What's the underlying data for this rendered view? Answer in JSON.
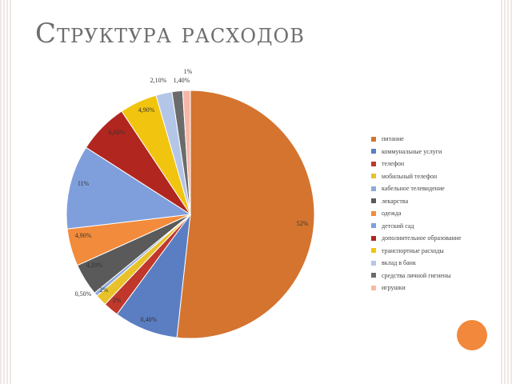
{
  "title": "Структура расходов",
  "chart_data": {
    "type": "pie",
    "title": "",
    "slices": [
      {
        "label": "питание",
        "value": 52,
        "value_label": "52%",
        "color": "#d4742f"
      },
      {
        "label": "коммунальные услуги",
        "value": 8.4,
        "value_label": "8,40%",
        "color": "#5b7ec2"
      },
      {
        "label": "телефон",
        "value": 2,
        "value_label": "2%",
        "color": "#c0372c"
      },
      {
        "label": "мобильный телефон",
        "value": 1.5,
        "value_label": "2%",
        "color": "#e8c22a"
      },
      {
        "label": "кабельное телевидение",
        "value": 0.5,
        "value_label": "0,50%",
        "color": "#8faad9"
      },
      {
        "label": "лекарства",
        "value": 4.2,
        "value_label": "4,20%",
        "color": "#5a5a5a"
      },
      {
        "label": "одежда",
        "value": 4.9,
        "value_label": "4,90%",
        "color": "#f28b3b"
      },
      {
        "label": "детский сад",
        "value": 11,
        "value_label": "11%",
        "color": "#7f9fdc"
      },
      {
        "label": "дополнительное образование",
        "value": 6.6,
        "value_label": "6,60%",
        "color": "#b1261f"
      },
      {
        "label": "транспортные расходы",
        "value": 4.9,
        "value_label": "4,90%",
        "color": "#f1c40f"
      },
      {
        "label": "вклад в банк",
        "value": 2.1,
        "value_label": "2,10%",
        "color": "#b4c6e7"
      },
      {
        "label": "средства личной гигиены",
        "value": 1.4,
        "value_label": "1,40%",
        "color": "#6b6b6b"
      },
      {
        "label": "игрушки",
        "value": 1,
        "value_label": "1%",
        "color": "#f6b7a6"
      }
    ]
  }
}
